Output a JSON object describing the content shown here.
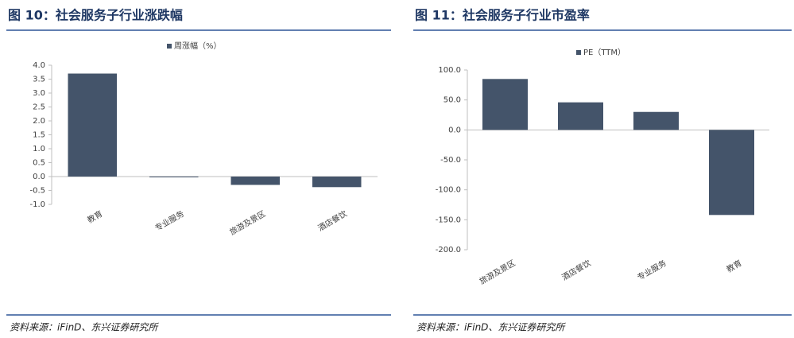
{
  "chart_data": [
    {
      "type": "bar",
      "title": "图 10：社会服务子行业涨跌幅",
      "source": "资料来源：iFinD、东兴证券研究所",
      "categories": [
        "教育",
        "专业服务",
        "旅游及景区",
        "酒店餐饮"
      ],
      "series": [
        {
          "name": "周涨幅（%）",
          "color": "#44546a",
          "values": [
            3.7,
            -0.02,
            -0.3,
            -0.38
          ]
        }
      ],
      "ylim": [
        -1,
        4
      ],
      "yticks": [
        {
          "value": -1,
          "label": "-1.0"
        },
        -0.5,
        {
          "value": 0,
          "label": "0.0"
        },
        0.5,
        {
          "value": 1,
          "label": "1.0"
        },
        1.5,
        {
          "value": 2,
          "label": "2.0"
        },
        2.5,
        {
          "value": 3,
          "label": "3.0"
        },
        3.5,
        {
          "value": 4,
          "label": "4.0"
        }
      ]
    },
    {
      "type": "bar",
      "title": "图 11：社会服务子行业市盈率",
      "source": "资料来源：iFinD、东兴证券研究所",
      "categories": [
        "旅游及景区",
        "酒店餐饮",
        "专业服务",
        "教育"
      ],
      "series": [
        {
          "name": "PE（TTM）",
          "color": "#44546a",
          "values": [
            85,
            46,
            30,
            -142
          ]
        }
      ],
      "ylim": [
        -200,
        100
      ],
      "yticks": [
        {
          "value": -200,
          "label": "-200.0"
        },
        {
          "value": -150,
          "label": "-150.0"
        },
        {
          "value": -100,
          "label": "-100.0"
        },
        {
          "value": -50,
          "label": "-50.0"
        },
        {
          "value": 0,
          "label": "0.0"
        },
        {
          "value": 50,
          "label": "50.0"
        },
        {
          "value": 100,
          "label": "100.0"
        }
      ]
    }
  ]
}
